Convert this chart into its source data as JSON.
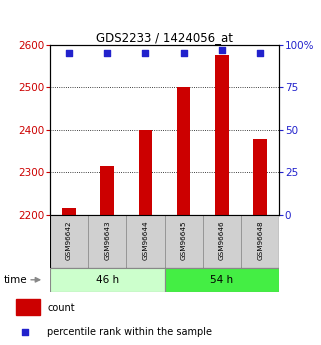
{
  "title": "GDS2233 / 1424056_at",
  "samples": [
    "GSM96642",
    "GSM96643",
    "GSM96644",
    "GSM96645",
    "GSM96646",
    "GSM96648"
  ],
  "counts": [
    2215,
    2315,
    2400,
    2500,
    2575,
    2378
  ],
  "percentiles": [
    95,
    95,
    95,
    95,
    97,
    95
  ],
  "group_46h_label": "46 h",
  "group_54h_label": "54 h",
  "group_46h_color": "#ccffcc",
  "group_54h_color": "#44ee44",
  "ylim_left": [
    2200,
    2600
  ],
  "ylim_right": [
    0,
    100
  ],
  "yticks_left": [
    2200,
    2300,
    2400,
    2500,
    2600
  ],
  "yticks_right": [
    0,
    25,
    50,
    75,
    100
  ],
  "bar_color": "#cc0000",
  "dot_color": "#2222cc",
  "left_tick_color": "#cc0000",
  "right_tick_color": "#2222cc",
  "background_color": "#ffffff",
  "legend_bar_label": "count",
  "legend_dot_label": "percentile rank within the sample",
  "time_label": "time",
  "bar_width": 0.35,
  "base_value": 2200
}
